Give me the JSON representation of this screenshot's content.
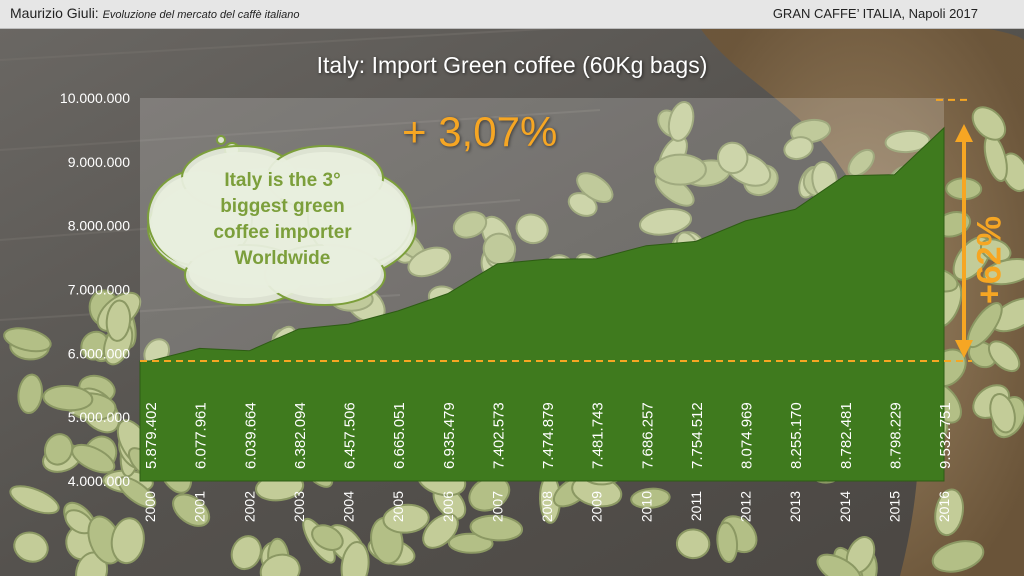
{
  "header": {
    "author": "Maurizio Giuli:",
    "subtitle": "Evoluzione del mercato del caffè italiano",
    "event": "GRAN CAFFE’ ITALIA, Napoli 2017"
  },
  "annotations": {
    "growth_rate": "+ 3,07%",
    "cloud_text": [
      "Italy is the 3°",
      "biggest green",
      "coffee importer",
      "Worldwide"
    ],
    "total_change": "+62%"
  },
  "colors": {
    "area": "#3f7a1e",
    "accent": "#f6a623",
    "cloud_text": "#7c9f3b"
  },
  "chart_data": {
    "type": "area",
    "title": "Italy: Import Green coffee (60Kg bags)",
    "xlabel": "",
    "ylabel": "",
    "ylim": [
      4000000,
      10000000
    ],
    "yticks": [
      4000000,
      5000000,
      6000000,
      7000000,
      8000000,
      9000000,
      10000000
    ],
    "ytick_labels": [
      "4.000.000",
      "5.000.000",
      "6.000.000",
      "7.000.000",
      "8.000.000",
      "9.000.000",
      "10.000.000"
    ],
    "categories": [
      "2000",
      "2001",
      "2002",
      "2003",
      "2004",
      "2005",
      "2006",
      "2007",
      "2008",
      "2009",
      "2010",
      "2011",
      "2012",
      "2013",
      "2014",
      "2015",
      "2016"
    ],
    "values": [
      5879402,
      6077961,
      6039664,
      6382094,
      6457506,
      6665051,
      6935479,
      7402573,
      7474879,
      7481743,
      7686257,
      7754512,
      8074969,
      8255170,
      8782481,
      8798229,
      9532751
    ],
    "value_labels": [
      "5.879.402",
      "6.077.961",
      "6.039.664",
      "6.382.094",
      "6.457.506",
      "6.665.051",
      "6.935.479",
      "7.402.573",
      "7.474.879",
      "7.481.743",
      "7.686.257",
      "7.754.512",
      "8.074.969",
      "8.255.170",
      "8.782.481",
      "8.798.229",
      "9.532.751"
    ],
    "grid": false,
    "legend": "none"
  }
}
